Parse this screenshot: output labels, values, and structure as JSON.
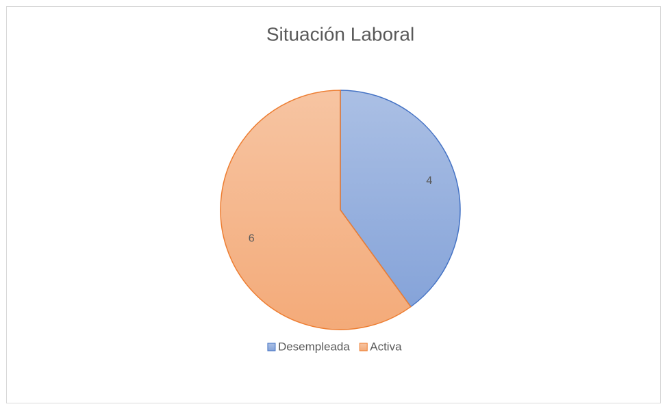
{
  "chart_data": {
    "type": "pie",
    "title": "Situación Laboral",
    "categories": [
      "Desempleada",
      "Activa"
    ],
    "values": [
      4,
      6
    ],
    "colors": [
      "#4472c4",
      "#ed7d31"
    ],
    "legend": "bottom"
  }
}
